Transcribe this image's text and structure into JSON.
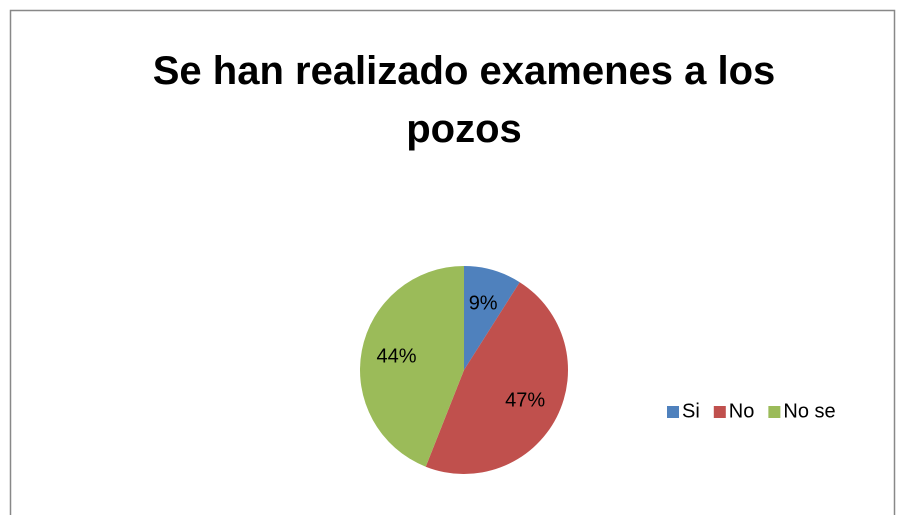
{
  "chart_data": {
    "type": "pie",
    "title": "Se han realizado examenes a los pozos",
    "categories": [
      "Si",
      "No",
      "No se"
    ],
    "values": [
      9,
      47,
      44
    ],
    "value_labels": [
      "9%",
      "47%",
      "44%"
    ],
    "colors": [
      "#4f81bd",
      "#c0504d",
      "#9bbb59"
    ],
    "legend": "right"
  }
}
